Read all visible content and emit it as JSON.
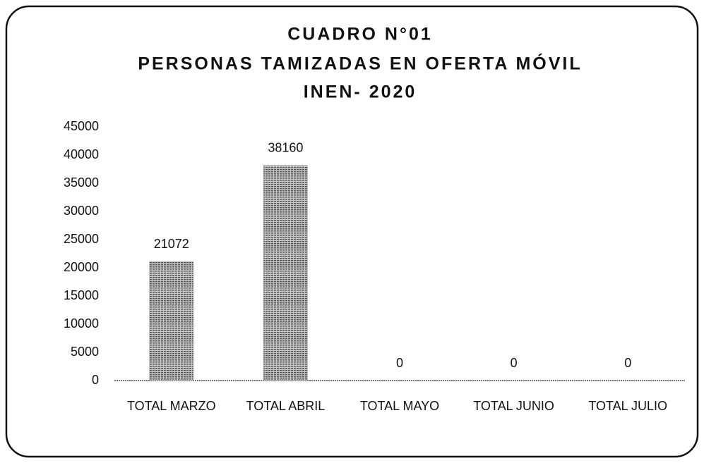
{
  "chart_data": {
    "type": "bar",
    "title_lines": [
      "CUADRO N°01",
      "PERSONAS TAMIZADAS EN OFERTA MÓVIL",
      "INEN- 2020"
    ],
    "categories": [
      "TOTAL MARZO",
      "TOTAL ABRIL",
      "TOTAL MAYO",
      "TOTAL JUNIO",
      "TOTAL JULIO"
    ],
    "values": [
      21072,
      38160,
      0,
      0,
      0
    ],
    "color": "#8a8a8a",
    "ylim": [
      0,
      45000
    ],
    "yticks": [
      0,
      5000,
      10000,
      15000,
      20000,
      25000,
      30000,
      35000,
      40000,
      45000
    ],
    "grid": false
  }
}
